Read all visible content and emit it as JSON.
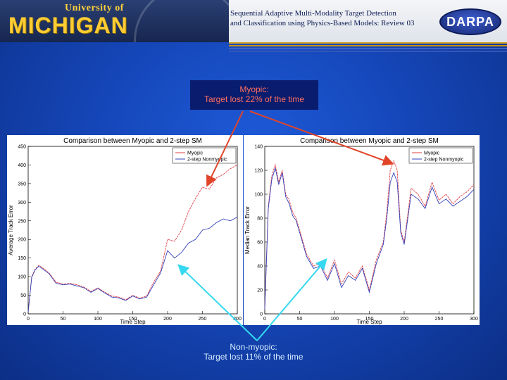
{
  "header": {
    "logo_small": "University of",
    "logo_big": "MICHIGAN",
    "title_line1": "Sequential Adaptive Multi-Modality Target Detection",
    "title_line2": "and Classification using Physics-Based Models: Review 03",
    "darpa_label": "DARPA"
  },
  "callouts": {
    "myopic_line1": "Myopic:",
    "myopic_line2": "Target lost 22% of the time",
    "nonmyopic_line1": "Non-myopic:",
    "nonmyopic_line2": "Target lost 11% of the time"
  },
  "colors": {
    "myopic": "#e0404a",
    "nonmyopic": "#3340b8",
    "arrow_red": "#e0452a",
    "arrow_cyan": "#36d8f0"
  },
  "chart_data": [
    {
      "type": "line",
      "title": "Comparison between Myopic and 2-step SM",
      "xlabel": "Time Step",
      "ylabel": "Average Track Error",
      "xlim": [
        0,
        300
      ],
      "ylim": [
        0,
        450
      ],
      "xticks": [
        0,
        50,
        100,
        150,
        200,
        250,
        300
      ],
      "yticks": [
        0,
        50,
        100,
        150,
        200,
        250,
        300,
        350,
        400,
        450
      ],
      "legend": "top-right",
      "grid": false,
      "x": [
        0,
        5,
        10,
        15,
        20,
        30,
        40,
        50,
        60,
        70,
        80,
        90,
        100,
        110,
        120,
        130,
        140,
        150,
        160,
        170,
        180,
        190,
        200,
        210,
        220,
        230,
        240,
        250,
        260,
        270,
        280,
        290,
        300
      ],
      "series": [
        {
          "name": "Myopic",
          "values": [
            5,
            100,
            120,
            130,
            125,
            110,
            85,
            80,
            82,
            78,
            72,
            60,
            70,
            58,
            48,
            45,
            38,
            50,
            42,
            48,
            85,
            115,
            200,
            195,
            225,
            275,
            310,
            340,
            335,
            365,
            375,
            390,
            400
          ]
        },
        {
          "name": "2-step Nonmyopic",
          "values": [
            5,
            98,
            118,
            128,
            122,
            108,
            82,
            78,
            80,
            75,
            70,
            58,
            68,
            56,
            45,
            43,
            36,
            48,
            40,
            45,
            78,
            110,
            170,
            150,
            165,
            190,
            200,
            225,
            230,
            245,
            255,
            250,
            260
          ]
        }
      ]
    },
    {
      "type": "line",
      "title": "Comparison between Myopic and 2-step SM",
      "xlabel": "Time Step",
      "ylabel": "Median Track Error",
      "xlim": [
        0,
        300
      ],
      "ylim": [
        0,
        140
      ],
      "xticks": [
        0,
        50,
        100,
        150,
        200,
        250,
        300
      ],
      "yticks": [
        0,
        20,
        40,
        60,
        80,
        100,
        120,
        140
      ],
      "legend": "top-right",
      "grid": false,
      "x": [
        0,
        5,
        10,
        15,
        20,
        25,
        30,
        35,
        40,
        45,
        50,
        60,
        70,
        80,
        90,
        100,
        110,
        120,
        130,
        140,
        150,
        160,
        170,
        175,
        180,
        185,
        190,
        195,
        200,
        210,
        220,
        230,
        240,
        250,
        260,
        270,
        280,
        290,
        300
      ],
      "series": [
        {
          "name": "Myopic",
          "values": [
            5,
            90,
            115,
            125,
            110,
            120,
            100,
            95,
            85,
            80,
            70,
            50,
            40,
            42,
            30,
            45,
            25,
            35,
            30,
            40,
            20,
            45,
            60,
            85,
            120,
            128,
            120,
            70,
            60,
            105,
            100,
            90,
            110,
            95,
            100,
            92,
            98,
            102,
            108
          ]
        },
        {
          "name": "2-step Nonmyopic",
          "values": [
            4,
            88,
            112,
            122,
            108,
            118,
            98,
            92,
            82,
            78,
            68,
            48,
            38,
            40,
            28,
            42,
            22,
            32,
            28,
            38,
            18,
            42,
            58,
            80,
            110,
            118,
            110,
            68,
            58,
            100,
            96,
            88,
            106,
            92,
            96,
            90,
            94,
            98,
            104
          ]
        }
      ]
    }
  ]
}
